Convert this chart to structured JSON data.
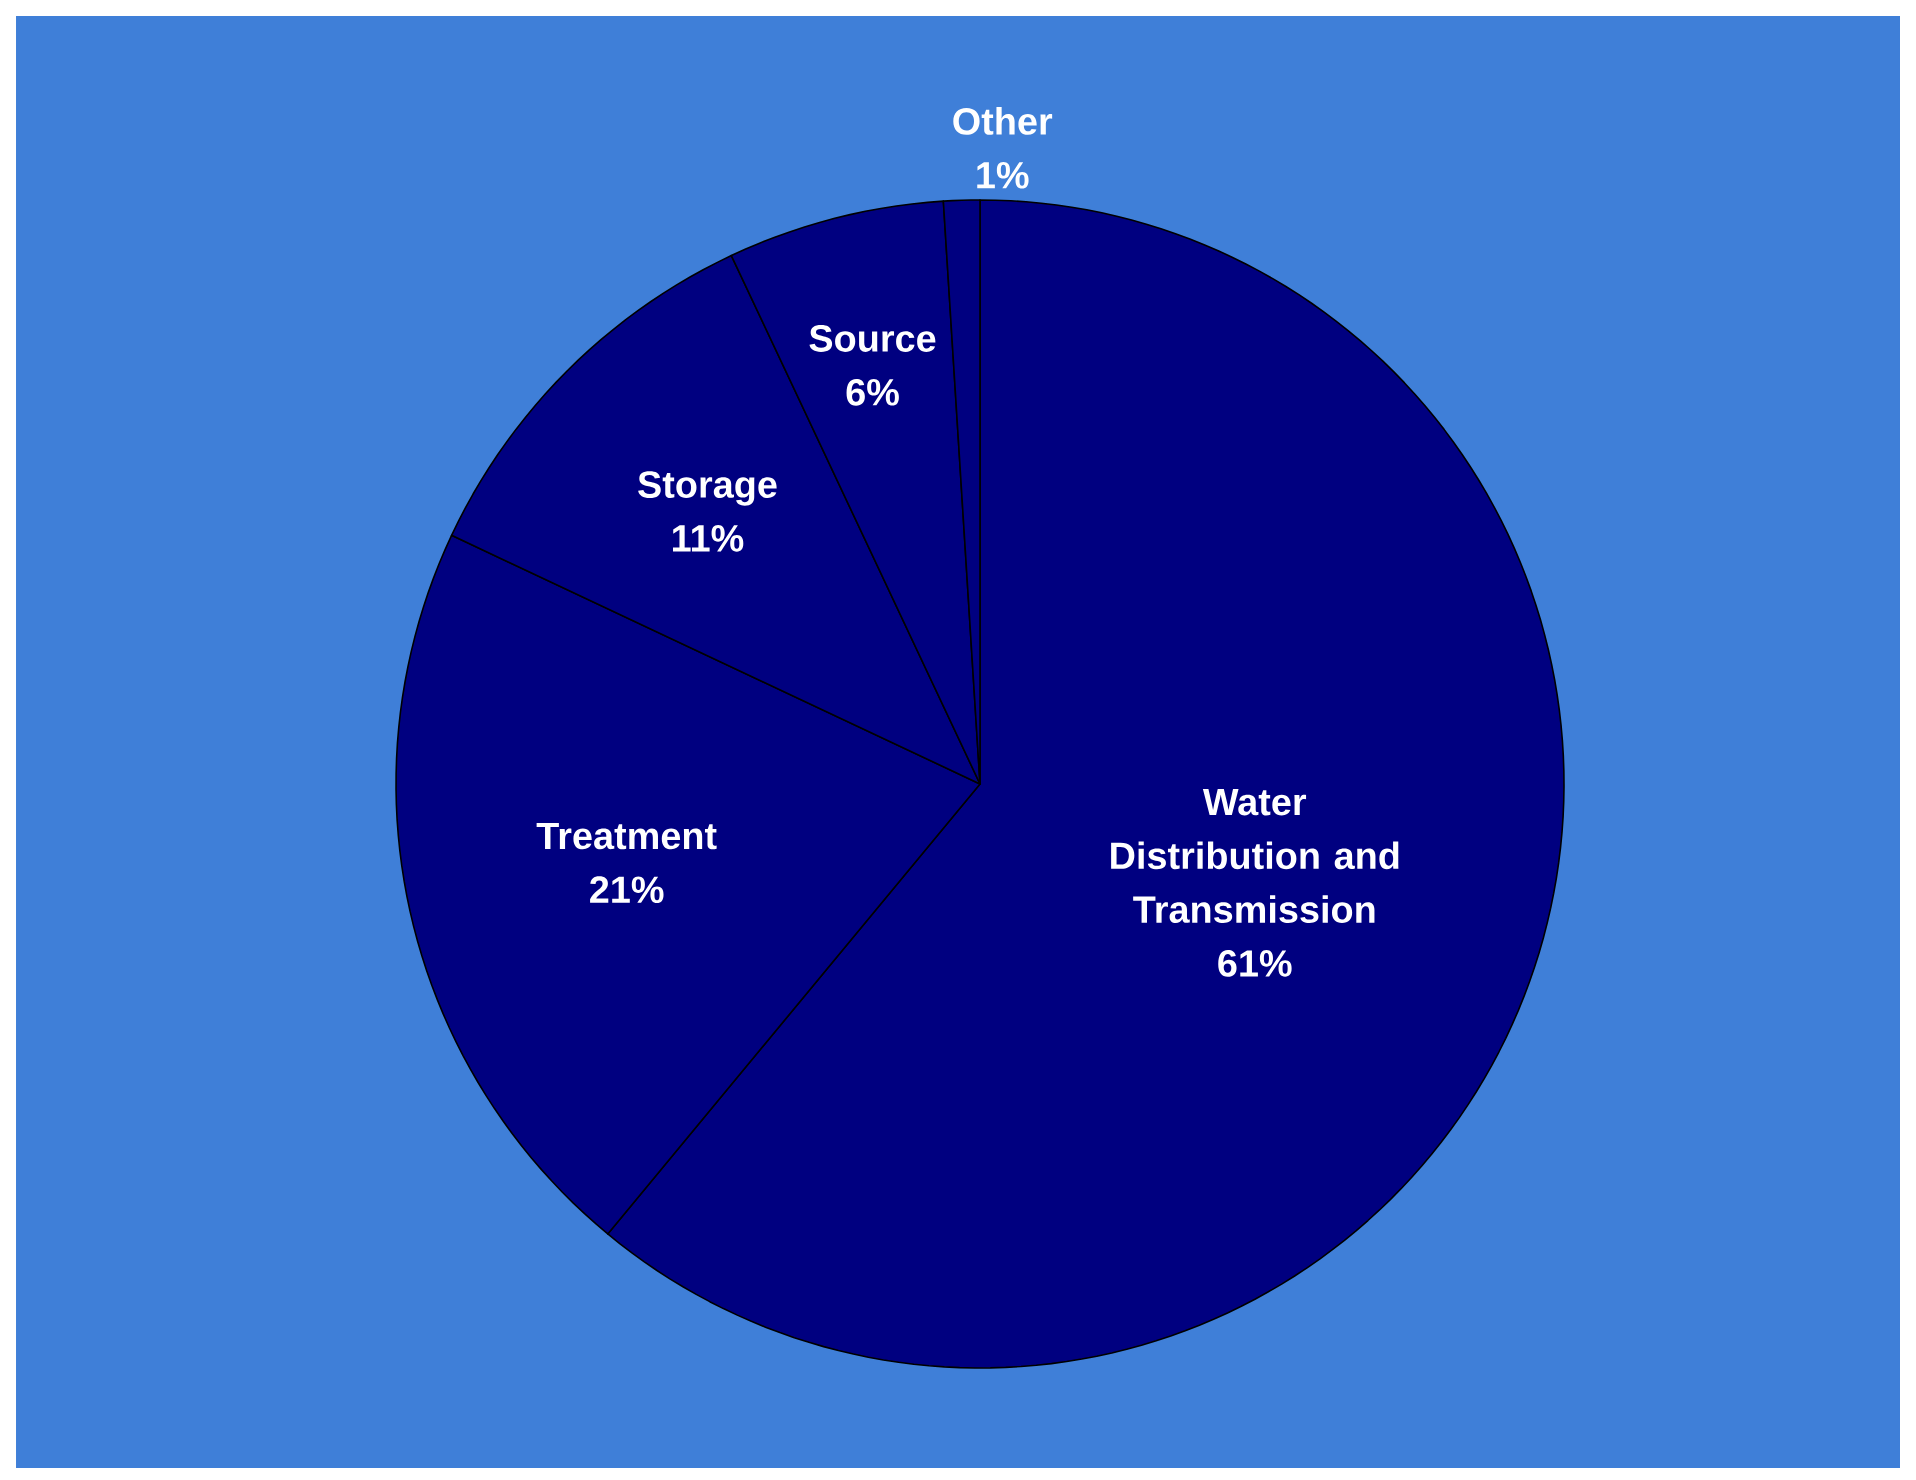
{
  "chart_data": {
    "type": "pie",
    "categories": [
      "Water Distribution and Transmission",
      "Treatment",
      "Storage",
      "Source",
      "Other"
    ],
    "values": [
      61,
      21,
      11,
      6,
      1
    ],
    "value_labels": [
      "61%",
      "21%",
      "11%",
      "6%",
      "1%"
    ],
    "colors": [
      "#000080",
      "#000080",
      "#000080",
      "#000080",
      "#000080"
    ]
  }
}
